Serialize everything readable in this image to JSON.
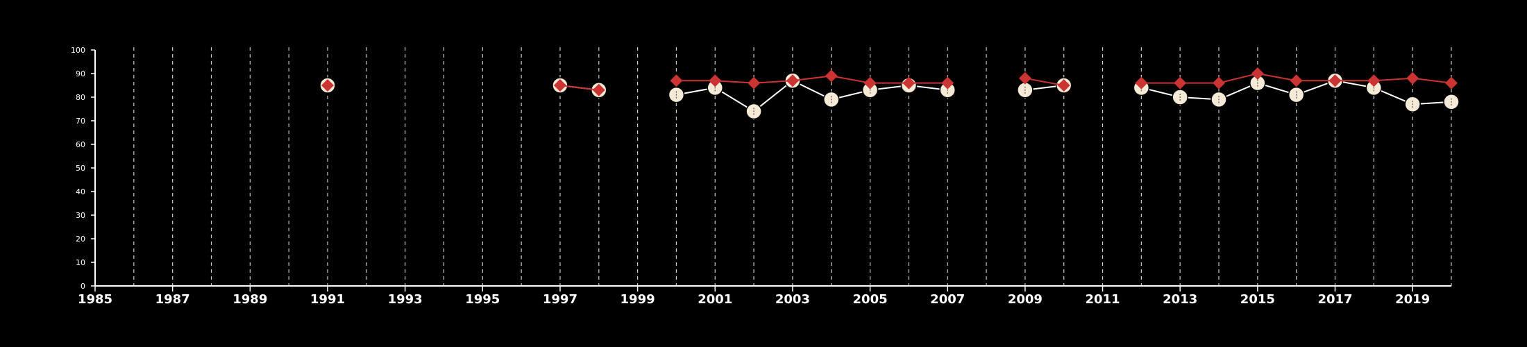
{
  "colors": {
    "background": "#000000",
    "axis": "#ffffff",
    "grid": "#cccccc",
    "series_a_line": "#ffffff",
    "series_a_marker": "#f5ead6",
    "series_b": "#cc3333"
  },
  "chart_data": {
    "type": "line",
    "title": "",
    "xlabel": "",
    "ylabel": "",
    "xlim": [
      1985,
      2020
    ],
    "ylim": [
      0,
      100
    ],
    "x_ticks": [
      1985,
      1987,
      1989,
      1991,
      1993,
      1995,
      1997,
      1999,
      2001,
      2003,
      2005,
      2007,
      2009,
      2011,
      2013,
      2015,
      2017,
      2019
    ],
    "y_ticks": [
      0,
      10,
      20,
      30,
      40,
      50,
      60,
      70,
      80,
      90,
      100
    ],
    "vertical_grid_years": [
      1986,
      1987,
      1988,
      1989,
      1990,
      1991,
      1992,
      1993,
      1994,
      1995,
      1996,
      1997,
      1998,
      1999,
      2000,
      2001,
      2002,
      2003,
      2004,
      2005,
      2006,
      2007,
      2008,
      2009,
      2010,
      2011,
      2012,
      2013,
      2014,
      2015,
      2016,
      2017,
      2018,
      2019,
      2020
    ],
    "grid": "vertical dashed",
    "legend": "none",
    "series": [
      {
        "marker": "circle",
        "points": [
          [
            1991,
            85
          ],
          [
            1997,
            85
          ],
          [
            1998,
            83
          ],
          [
            2000,
            81
          ],
          [
            2001,
            84
          ],
          [
            2002,
            74
          ],
          [
            2003,
            87
          ],
          [
            2004,
            79
          ],
          [
            2005,
            83
          ],
          [
            2006,
            85
          ],
          [
            2007,
            83
          ],
          [
            2009,
            83
          ],
          [
            2010,
            85
          ],
          [
            2012,
            84
          ],
          [
            2013,
            80
          ],
          [
            2014,
            79
          ],
          [
            2015,
            86
          ],
          [
            2016,
            81
          ],
          [
            2017,
            87
          ],
          [
            2018,
            84
          ],
          [
            2019,
            77
          ],
          [
            2020,
            78
          ]
        ]
      },
      {
        "marker": "diamond",
        "points": [
          [
            1991,
            85
          ],
          [
            1997,
            85
          ],
          [
            1998,
            83
          ],
          [
            2000,
            87
          ],
          [
            2001,
            87
          ],
          [
            2002,
            86
          ],
          [
            2003,
            87
          ],
          [
            2004,
            89
          ],
          [
            2005,
            86
          ],
          [
            2006,
            86
          ],
          [
            2007,
            86
          ],
          [
            2009,
            88
          ],
          [
            2010,
            85
          ],
          [
            2012,
            86
          ],
          [
            2013,
            86
          ],
          [
            2014,
            86
          ],
          [
            2015,
            90
          ],
          [
            2016,
            87
          ],
          [
            2017,
            87
          ],
          [
            2018,
            87
          ],
          [
            2019,
            88
          ],
          [
            2020,
            86
          ]
        ]
      }
    ]
  }
}
